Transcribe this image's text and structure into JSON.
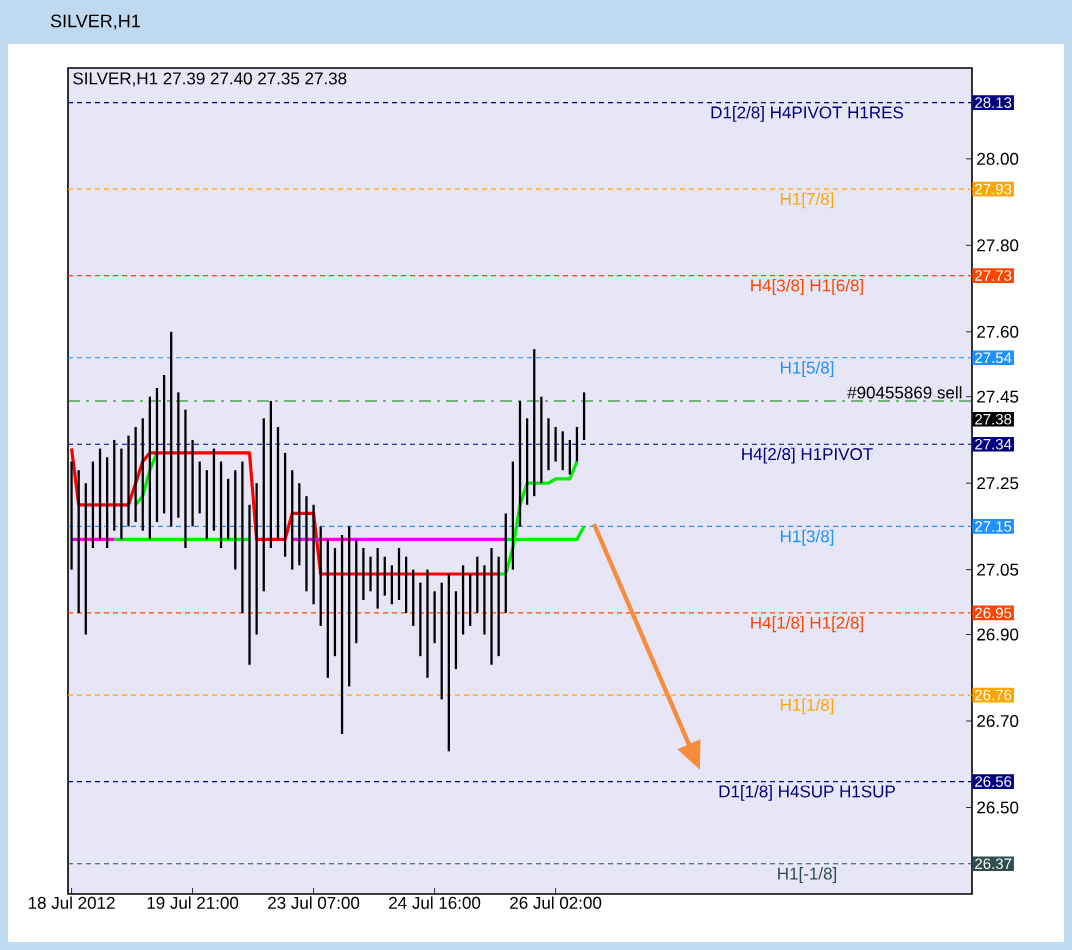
{
  "chart_data": {
    "type": "bar",
    "title": "SILVER,H1",
    "subtitle": "SILVER,H1  27.39 27.40 27.35 27.38",
    "categories": [
      "18 Jul 2012",
      null,
      null,
      null,
      null,
      null,
      null,
      null,
      null,
      null,
      null,
      null,
      null,
      null,
      null,
      null,
      null,
      "19 Jul 21:00",
      null,
      null,
      null,
      null,
      null,
      null,
      null,
      null,
      null,
      null,
      null,
      null,
      null,
      null,
      null,
      null,
      "23 Jul 07:00",
      null,
      null,
      null,
      null,
      null,
      null,
      null,
      null,
      null,
      null,
      null,
      null,
      null,
      null,
      null,
      null,
      "24 Jul 16:00",
      null,
      null,
      null,
      null,
      null,
      null,
      null,
      null,
      null,
      null,
      null,
      null,
      null,
      null,
      null,
      null,
      "26 Jul 02:00",
      null,
      null,
      null,
      null,
      null,
      null,
      null,
      null,
      null,
      null,
      null,
      null,
      null,
      null,
      null,
      null,
      null,
      null,
      null,
      null,
      null,
      null,
      null,
      null,
      null,
      null,
      null,
      null,
      null,
      null,
      null,
      null,
      null,
      null,
      null,
      null,
      null,
      null,
      null,
      null,
      null,
      null,
      null,
      null,
      null,
      null,
      null,
      null,
      null,
      null,
      null,
      null,
      null,
      null,
      null,
      null,
      null,
      null
    ],
    "series": [
      {
        "type": "line",
        "color": "#00ee00",
        "values": [
          null,
          null,
          null,
          null,
          null,
          null,
          27.12,
          27.12,
          27.12,
          27.12,
          27.12,
          27.12,
          27.12,
          27.12,
          27.12,
          27.12,
          27.12,
          27.12,
          27.12,
          27.12,
          27.12,
          27.12,
          27.12,
          27.12,
          27.12,
          27.12,
          null,
          null,
          null,
          null,
          null,
          null,
          null,
          null,
          null,
          null,
          null,
          null,
          null,
          null,
          null,
          null,
          null,
          null,
          null,
          null,
          null,
          null,
          null,
          null,
          null,
          null,
          null,
          null,
          null,
          null,
          null,
          null,
          null,
          null,
          null,
          27.12,
          27.12,
          27.12,
          27.12,
          27.12,
          27.12,
          27.12,
          27.12,
          27.12,
          27.12,
          27.12,
          27.15,
          null,
          null,
          null,
          null,
          null,
          null,
          null,
          null,
          null,
          null,
          null,
          null,
          null,
          null,
          null,
          null,
          null,
          null,
          null,
          null,
          null,
          null,
          null,
          null,
          null,
          null,
          null,
          null,
          null,
          null,
          null,
          null,
          null,
          null,
          null,
          null,
          null,
          null,
          null,
          null,
          null,
          null,
          null,
          null,
          null,
          null,
          null,
          null,
          null,
          null,
          null,
          null,
          null,
          null
        ]
      },
      {
        "type": "line",
        "color": "#00ee00",
        "values": [
          null,
          null,
          null,
          null,
          null,
          null,
          null,
          null,
          null,
          27.2,
          27.22,
          27.28,
          27.32,
          null,
          null,
          null,
          null,
          null,
          null,
          null,
          null,
          null,
          null,
          null,
          null,
          null,
          null,
          null,
          null,
          null,
          null,
          null,
          null,
          null,
          null,
          null,
          null,
          null,
          null,
          null,
          null,
          null,
          null,
          null,
          null,
          null,
          null,
          null,
          null,
          null,
          null,
          null,
          null,
          null,
          null,
          null,
          null,
          null,
          null,
          null,
          27.04,
          27.04,
          27.1,
          27.2,
          27.25,
          27.25,
          27.25,
          27.25,
          27.26,
          27.26,
          27.26,
          27.3,
          null,
          null,
          null,
          null,
          null,
          null,
          null,
          null,
          null,
          null,
          null,
          null,
          null,
          null,
          null,
          null,
          null,
          null,
          null,
          null,
          null,
          null,
          null,
          null,
          null,
          null,
          null,
          null,
          null,
          null,
          null,
          null,
          null,
          null,
          null,
          null,
          null,
          null,
          null,
          null,
          null,
          null,
          null,
          null,
          null,
          null,
          null,
          null,
          null,
          null,
          null,
          null,
          null,
          null,
          null
        ]
      },
      {
        "type": "line",
        "color": "#ff0000",
        "values": [
          27.33,
          27.2,
          27.2,
          27.2,
          27.2,
          27.2,
          27.2,
          27.2,
          27.2,
          27.25,
          27.3,
          27.32,
          27.32,
          27.32,
          27.32,
          27.32,
          27.32,
          27.32,
          27.32,
          27.32,
          27.32,
          27.32,
          27.32,
          27.32,
          27.32,
          27.32,
          27.12,
          27.12,
          27.12,
          27.12,
          27.12,
          27.18,
          27.18,
          27.18,
          27.18,
          27.04,
          27.04,
          27.04,
          27.04,
          27.04,
          27.04,
          27.04,
          27.04,
          27.04,
          27.04,
          27.04,
          27.04,
          27.04,
          27.04,
          27.04,
          27.04,
          27.04,
          27.04,
          27.04,
          27.04,
          27.04,
          27.04,
          27.04,
          27.04,
          27.04,
          27.04,
          null,
          null,
          null,
          null,
          null,
          null,
          null,
          null,
          null,
          null,
          null,
          null,
          null,
          null,
          null,
          null,
          null,
          null,
          null,
          null,
          null,
          null,
          null,
          null,
          null,
          null,
          null,
          null,
          null,
          null,
          null,
          null,
          null,
          null,
          null,
          null,
          null,
          null,
          null,
          null,
          null,
          null,
          null,
          null,
          null,
          null,
          null,
          null,
          null,
          null,
          null,
          null,
          null,
          null,
          null,
          null,
          null,
          null,
          null,
          null,
          null,
          null,
          null,
          null,
          null,
          null
        ]
      },
      {
        "type": "line",
        "color": "#ee00ee",
        "values": [
          27.12,
          27.12,
          27.12,
          27.12,
          27.12,
          27.12,
          27.12,
          null,
          null,
          null,
          null,
          null,
          null,
          null,
          null,
          null,
          null,
          null,
          null,
          null,
          null,
          null,
          null,
          null,
          null,
          null,
          null,
          null,
          null,
          null,
          null,
          27.12,
          27.12,
          27.12,
          27.12,
          27.12,
          27.12,
          27.12,
          27.12,
          27.12,
          27.12,
          27.12,
          27.12,
          27.12,
          27.12,
          27.12,
          27.12,
          27.12,
          27.12,
          27.12,
          27.12,
          27.12,
          27.12,
          27.12,
          27.12,
          27.12,
          27.12,
          27.12,
          27.12,
          27.12,
          27.12,
          27.12,
          null,
          null,
          null,
          null,
          null,
          null,
          null,
          null,
          null,
          null,
          null,
          null,
          null,
          null,
          null,
          null,
          null,
          null,
          null,
          null,
          null,
          null,
          null,
          null,
          null,
          null,
          null,
          null,
          null,
          null,
          null,
          null,
          null,
          null,
          null,
          null,
          null,
          null,
          null,
          null,
          null,
          null,
          null,
          null,
          null,
          null,
          null,
          null,
          null,
          null,
          null,
          null,
          null,
          null,
          null,
          null,
          null,
          null,
          null,
          null,
          null,
          null,
          null,
          null,
          null
        ]
      },
      {
        "color": "#000000",
        "values": [
          0.25,
          0.33,
          0.35,
          0.2,
          0.21,
          0.21,
          0.21,
          0.21,
          0.21,
          0.22,
          0.26,
          0.33,
          0.31,
          0.32,
          0.45,
          0.29,
          0.32,
          0.2,
          0.12,
          0.16,
          0.19,
          0.2,
          0.14,
          0.23,
          0.35,
          0.37,
          0.35,
          0.4,
          0.34,
          0.26,
          0.24,
          0.23,
          0.19,
          0.22,
          0.23,
          0.23,
          0.32,
          0.25,
          0.46,
          0.37,
          0.24,
          0.12,
          0.08,
          0.14,
          0.09,
          0.09,
          0.12,
          0.13,
          0.13,
          0.17,
          0.25,
          0.12,
          0.27,
          0.41,
          0.18,
          0.16,
          0.12,
          0.13,
          0.16,
          0.27,
          0.23,
          0.23,
          0.25,
          0.29,
          0.2,
          0.34,
          0.2,
          0.12,
          0.08,
          0.09,
          0.08,
          0.08,
          0.11,
          null,
          null,
          null,
          null,
          null,
          null,
          null,
          null,
          null,
          null,
          null,
          null,
          null,
          null,
          null,
          null,
          null,
          null,
          null,
          null,
          null,
          null,
          null,
          null,
          null,
          null,
          null,
          null,
          null,
          null,
          null,
          null,
          null,
          null,
          null,
          null,
          null,
          null,
          null,
          null,
          null,
          null,
          null,
          null,
          null,
          null,
          null,
          null,
          null,
          null,
          null,
          null,
          null,
          null
        ],
        "base": [
          27.05,
          26.95,
          26.9,
          27.1,
          27.12,
          27.1,
          27.14,
          27.12,
          27.15,
          27.16,
          27.14,
          27.12,
          27.16,
          27.18,
          27.15,
          27.17,
          27.1,
          27.15,
          27.18,
          27.12,
          27.14,
          27.1,
          27.12,
          27.05,
          26.95,
          26.83,
          26.9,
          27.0,
          27.1,
          27.12,
          27.08,
          27.05,
          27.06,
          27.0,
          26.97,
          26.92,
          26.8,
          26.85,
          26.67,
          26.78,
          26.88,
          26.98,
          27.0,
          26.96,
          26.99,
          26.97,
          26.98,
          26.95,
          26.92,
          26.85,
          26.8,
          26.88,
          26.75,
          26.63,
          26.82,
          26.9,
          26.92,
          26.95,
          26.9,
          26.83,
          26.85,
          26.95,
          27.05,
          27.15,
          27.2,
          27.22,
          27.25,
          27.28,
          27.3,
          27.28,
          27.27,
          27.3,
          27.35,
          null,
          null,
          null,
          null,
          null,
          null,
          null,
          null,
          null,
          null,
          null,
          null,
          null,
          null,
          null,
          null,
          null,
          null,
          null,
          null,
          null,
          null,
          null,
          null,
          null,
          null,
          null,
          null,
          null,
          null,
          null,
          null,
          null,
          null,
          null,
          null,
          null,
          null,
          null,
          null,
          null,
          null,
          null,
          null,
          null,
          null,
          null,
          null,
          null,
          null,
          null,
          null,
          null,
          null
        ]
      }
    ],
    "ylim": [
      26.3,
      28.21
    ],
    "yticks": [
      {
        "value": 28.0,
        "label": "28.00"
      },
      {
        "value": 27.8,
        "label": "27.80"
      },
      {
        "value": 27.6,
        "label": "27.60"
      },
      27.45,
      27.25,
      27.05,
      {
        "value": 26.9,
        "label": "26.90"
      },
      {
        "value": 26.7,
        "label": "26.70"
      },
      {
        "value": 26.5,
        "label": "26.50"
      }
    ],
    "y2lim": [
      26.3,
      28.21
    ],
    "y2ticks": [
      28.13,
      27.93,
      27.73,
      27.54,
      27.38,
      27.34,
      27.15,
      26.95,
      26.76,
      26.56,
      26.37
    ],
    "ref_lines": [
      {
        "axis": "y",
        "value": 28.13,
        "label": "D1[2/8] H4PIVOT H1RES",
        "color": "#000080",
        "line_style": "dashed"
      },
      {
        "axis": "y",
        "value": 27.93,
        "label": "H1[7/8]",
        "color": "#ffa500",
        "line_style": "dashed"
      },
      {
        "axis": "y",
        "value": 27.73,
        "label": "H4[3/8] H1[6/8]",
        "color": "#ff4500",
        "line_style": "dashed"
      },
      {
        "axis": "y",
        "value": 27.54,
        "label": "H1[5/8]",
        "color": "#1e90ff",
        "line_style": "dashed"
      },
      {
        "axis": "y",
        "value": 27.44,
        "label": "#90455869 sell",
        "color": "#008000",
        "line_style": "dashdot"
      },
      {
        "axis": "y",
        "value": 27.34,
        "label": "H4[2/8] H1PIVOT",
        "color": "#000080",
        "line_style": "dashed"
      },
      {
        "axis": "y",
        "value": 27.15,
        "label": "H1[3/8]",
        "color": "#1e90ff",
        "line_style": "dashed"
      },
      {
        "axis": "y",
        "value": 26.95,
        "label": "H4[1/8] H1[2/8]",
        "color": "#ff4500",
        "line_style": "dashed"
      },
      {
        "axis": "y",
        "value": 26.76,
        "label": "H1[1/8]",
        "color": "#ffa500",
        "line_style": "dashed"
      },
      {
        "axis": "y",
        "value": 26.56,
        "label": "D1[1/8] H4SUP H1SUP",
        "color": "#000080",
        "line_style": "dashed"
      },
      {
        "axis": "y",
        "value": 26.37,
        "label": "H1[-1/8]",
        "color": "#2f4f4f",
        "line_style": "dashed"
      }
    ]
  }
}
